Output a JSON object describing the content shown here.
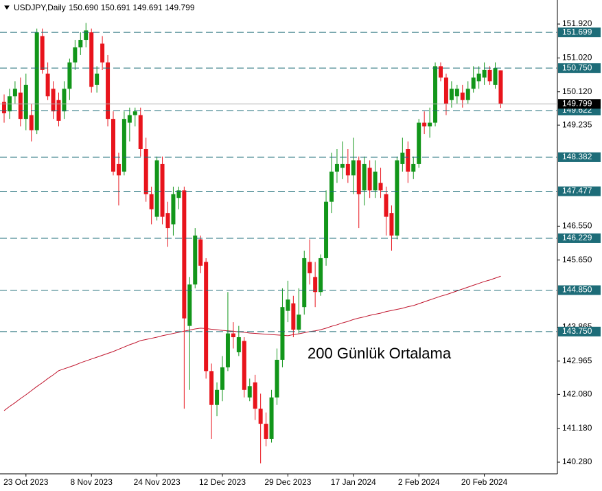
{
  "chart_data": {
    "type": "candlestick",
    "title": "USDJPY,Daily",
    "ohlc_text": "150.690 150.691 149.691 149.799",
    "annotation": "200 Günlük Ortalama",
    "categories": [
      null,
      null,
      null,
      null,
      "23 Oct 2023",
      null,
      null,
      null,
      null,
      null,
      null,
      null,
      null,
      null,
      null,
      null,
      "8 Nov 2023",
      null,
      null,
      null,
      null,
      null,
      null,
      null,
      null,
      null,
      null,
      null,
      "24 Nov 2023",
      null,
      null,
      null,
      null,
      null,
      null,
      null,
      null,
      null,
      null,
      null,
      "12 Dec 2023",
      null,
      null,
      null,
      null,
      null,
      null,
      null,
      null,
      null,
      null,
      null,
      "29 Dec 2023",
      null,
      null,
      null,
      null,
      null,
      null,
      null,
      null,
      null,
      null,
      null,
      "17 Jan 2024",
      null,
      null,
      null,
      null,
      null,
      null,
      null,
      null,
      null,
      null,
      null,
      "2 Feb 2024",
      null,
      null,
      null,
      null,
      null,
      null,
      null,
      null,
      null,
      null,
      null,
      "20 Feb 2024",
      null,
      null,
      null
    ],
    "open": [
      149.85,
      149.6,
      150.0,
      150.1,
      149.4,
      149.5,
      149.1,
      151.6,
      150.6,
      150.2,
      149.9,
      149.6,
      150.2,
      150.9,
      151.3,
      151.5,
      151.7,
      150.3,
      151.4,
      150.9,
      149.4,
      148.2,
      148.0,
      149.3,
      149.5,
      149.5,
      148.6,
      147.4,
      146.8,
      148.2,
      146.9,
      146.6,
      147.3,
      147.5,
      143.9,
      145.0,
      146.2,
      145.6,
      142.7,
      141.8,
      142.2,
      142.8,
      143.7,
      143.2,
      143.5,
      142.0,
      142.4,
      141.7,
      141.3,
      140.9,
      142.0,
      143.0,
      144.3,
      144.5,
      143.8,
      144.4,
      145.6,
      145.2,
      144.8,
      145.7,
      147.2,
      148.0,
      148.1,
      148.2,
      147.9,
      148.3,
      147.5,
      148.1,
      147.5,
      147.7,
      147.4,
      146.9,
      146.3,
      148.2,
      148.6,
      148.0,
      148.2,
      149.3,
      149.2,
      149.3,
      150.8,
      150.5,
      149.9,
      150.0,
      150.1,
      149.9,
      150.2,
      150.4,
      150.5,
      150.7,
      150.3,
      150.69
    ],
    "high": [
      150.05,
      150.2,
      150.4,
      150.5,
      150.6,
      149.8,
      151.8,
      151.8,
      150.9,
      150.4,
      150.1,
      150.4,
      151.0,
      151.5,
      151.7,
      151.95,
      151.8,
      150.8,
      151.6,
      151.1,
      149.6,
      148.5,
      149.6,
      149.7,
      149.7,
      149.7,
      148.9,
      147.6,
      148.4,
      148.4,
      147.2,
      147.6,
      147.6,
      147.6,
      145.2,
      146.5,
      146.3,
      145.7,
      142.9,
      142.4,
      143.1,
      144.8,
      144.0,
      143.9,
      143.6,
      142.5,
      142.6,
      142.1,
      141.6,
      142.2,
      143.3,
      144.9,
      145.1,
      144.7,
      144.9,
      145.9,
      146.2,
      145.6,
      145.8,
      147.5,
      148.5,
      148.6,
      148.8,
      148.6,
      148.9,
      148.4,
      148.4,
      148.3,
      148.3,
      148.1,
      147.6,
      147.1,
      148.4,
      148.9,
      148.8,
      148.4,
      149.4,
      149.6,
      149.7,
      150.9,
      150.9,
      150.6,
      150.4,
      150.3,
      150.3,
      150.4,
      150.8,
      150.8,
      150.9,
      150.8,
      150.9,
      150.691
    ],
    "low": [
      149.3,
      149.4,
      149.8,
      149.2,
      149.1,
      148.8,
      149.0,
      150.6,
      149.9,
      149.4,
      149.2,
      149.4,
      149.9,
      150.7,
      151.1,
      151.3,
      150.1,
      150.1,
      150.7,
      149.2,
      147.9,
      147.1,
      147.9,
      148.8,
      149.2,
      148.4,
      147.2,
      146.6,
      146.7,
      146.6,
      146.0,
      146.3,
      147.0,
      141.7,
      142.2,
      144.9,
      145.3,
      142.5,
      140.9,
      141.5,
      141.9,
      142.7,
      143.3,
      143.1,
      142.0,
      141.9,
      141.4,
      140.25,
      140.7,
      140.8,
      141.8,
      142.8,
      144.0,
      143.6,
      143.7,
      144.2,
      145.0,
      144.4,
      144.7,
      145.5,
      146.9,
      147.7,
      147.8,
      147.7,
      147.4,
      146.5,
      147.1,
      147.3,
      147.3,
      147.3,
      146.3,
      145.9,
      146.2,
      148.0,
      147.7,
      147.8,
      148.1,
      149.0,
      148.9,
      149.2,
      150.4,
      149.5,
      149.7,
      149.8,
      149.7,
      149.8,
      150.1,
      150.2,
      150.3,
      150.3,
      150.2,
      149.691
    ],
    "close": [
      149.55,
      150.0,
      150.2,
      149.4,
      150.3,
      149.1,
      151.7,
      150.7,
      150.0,
      149.6,
      149.35,
      150.2,
      150.9,
      151.3,
      151.5,
      151.75,
      150.25,
      150.6,
      150.9,
      149.4,
      148.0,
      147.9,
      149.4,
      149.5,
      149.6,
      148.6,
      147.4,
      147.0,
      148.3,
      146.8,
      146.5,
      147.4,
      147.5,
      144.1,
      145.0,
      146.3,
      145.5,
      142.7,
      141.8,
      142.2,
      142.8,
      143.7,
      143.6,
      143.6,
      142.2,
      142.3,
      141.7,
      141.3,
      140.9,
      142.0,
      143.0,
      144.4,
      144.6,
      143.8,
      144.2,
      145.7,
      145.3,
      144.8,
      145.7,
      147.2,
      148.0,
      148.2,
      148.2,
      147.9,
      148.3,
      147.4,
      148.2,
      147.5,
      148.0,
      147.5,
      146.8,
      146.3,
      148.3,
      148.5,
      148.0,
      148.2,
      149.3,
      149.2,
      149.3,
      150.8,
      150.5,
      149.8,
      150.2,
      150.2,
      149.9,
      150.2,
      150.5,
      150.6,
      150.7,
      150.4,
      150.75,
      149.799
    ],
    "up_color": "#12961a",
    "down_color": "#e8141c",
    "ma": {
      "color": "#c0142c",
      "values": [
        141.65,
        141.76,
        141.86,
        141.97,
        142.07,
        142.18,
        142.29,
        142.39,
        142.5,
        142.6,
        142.71,
        142.76,
        142.81,
        142.86,
        142.92,
        142.97,
        143.02,
        143.07,
        143.12,
        143.17,
        143.22,
        143.28,
        143.34,
        143.4,
        143.45,
        143.51,
        143.54,
        143.57,
        143.6,
        143.64,
        143.67,
        143.7,
        143.73,
        143.76,
        143.79,
        143.82,
        143.84,
        143.83,
        143.81,
        143.8,
        143.78,
        143.77,
        143.76,
        143.74,
        143.73,
        143.71,
        143.7,
        143.69,
        143.68,
        143.67,
        143.66,
        143.65,
        143.64,
        143.67,
        143.69,
        143.72,
        143.75,
        143.77,
        143.8,
        143.84,
        143.89,
        143.93,
        143.98,
        144.02,
        144.07,
        144.11,
        144.14,
        144.18,
        144.21,
        144.24,
        144.28,
        144.31,
        144.34,
        144.37,
        144.41,
        144.44,
        144.49,
        144.54,
        144.59,
        144.64,
        144.69,
        144.73,
        144.78,
        144.83,
        144.88,
        144.93,
        144.98,
        145.03,
        145.08,
        145.12,
        145.17,
        145.22
      ]
    },
    "annotation_color": "#e8541a",
    "ylim": [
      139.97,
      152.559
    ],
    "yticks": [
      {
        "value": 151.92,
        "label": "151.920"
      },
      {
        "value": 151.02,
        "label": "151.020"
      },
      {
        "value": 150.12,
        "label": "150.120"
      },
      149.235,
      {
        "value": 146.55,
        "label": "146.550"
      },
      {
        "value": 145.65,
        "label": "145.650"
      },
      143.865,
      142.965,
      {
        "value": 142.08,
        "label": "142.080"
      },
      {
        "value": 141.18,
        "label": "141.180"
      },
      {
        "value": 140.28,
        "label": "140.280"
      }
    ],
    "levels": [
      151.699,
      {
        "value": 150.75,
        "label": "150.750"
      },
      149.622,
      148.382,
      147.477,
      146.229,
      {
        "value": 144.85,
        "label": "144.850"
      },
      {
        "value": 143.75,
        "label": "143.750"
      }
    ],
    "level_color": "#1d6c78",
    "current_price": 149.799,
    "current_color": "#000000"
  }
}
